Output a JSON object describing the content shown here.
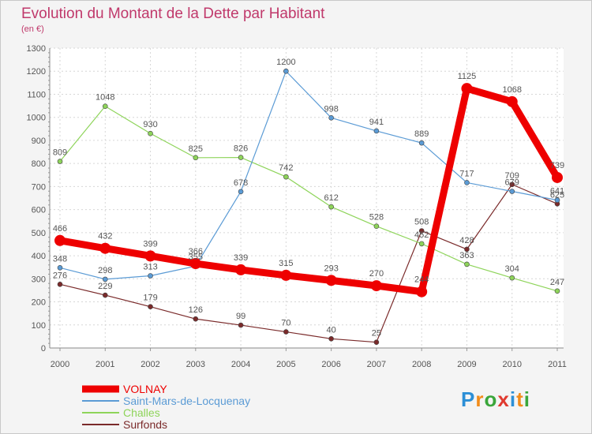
{
  "title": "Evolution du Montant de la Dette par Habitant",
  "subtitle": "(en €)",
  "logo": {
    "text": "Proxiti",
    "letters": [
      "P",
      "r",
      "o",
      "x",
      "i",
      "t",
      "i"
    ],
    "colors": [
      "#2c8fd6",
      "#f28c1a",
      "#3aa63a",
      "#e03a2f",
      "#2c8fd6",
      "#f28c1a",
      "#3aa63a"
    ]
  },
  "chart_data": {
    "type": "line",
    "x": [
      "2000",
      "2001",
      "2002",
      "2003",
      "2004",
      "2005",
      "2006",
      "2007",
      "2008",
      "2009",
      "2010",
      "2011"
    ],
    "ylim": [
      0,
      1300
    ],
    "yticks": [
      0,
      100,
      200,
      300,
      400,
      500,
      600,
      700,
      800,
      900,
      1000,
      1100,
      1200,
      1300
    ],
    "grid": true,
    "legend_position": "bottom-left",
    "series": [
      {
        "name": "VOLNAY",
        "color": "#ee0000",
        "values": [
          466,
          432,
          399,
          366,
          339,
          315,
          293,
          270,
          244,
          1125,
          1068,
          739
        ]
      },
      {
        "name": "Saint-Mars-de-Locquenay",
        "color": "#5b9bd5",
        "values": [
          348,
          298,
          313,
          355,
          678,
          1200,
          998,
          941,
          889,
          717,
          679,
          641
        ]
      },
      {
        "name": "Challes",
        "color": "#8ed45a",
        "values": [
          809,
          1048,
          930,
          825,
          826,
          742,
          612,
          528,
          452,
          363,
          304,
          247
        ]
      },
      {
        "name": "Surfonds",
        "color": "#7a2a2a",
        "values": [
          276,
          229,
          179,
          126,
          99,
          70,
          40,
          25,
          508,
          428,
          709,
          625
        ]
      }
    ]
  }
}
